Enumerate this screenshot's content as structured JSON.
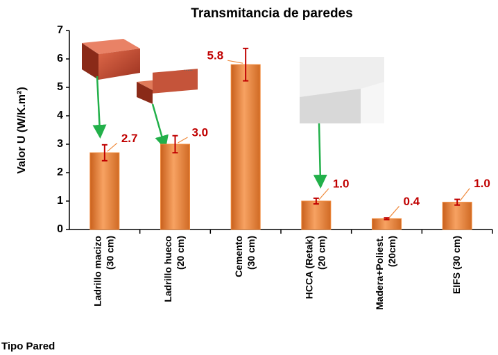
{
  "chart_data": {
    "type": "bar",
    "title": "Transmitancia de paredes",
    "y_label": "Valor U (W/K.m²)",
    "x_label": "Tipo Pared",
    "categories": [
      [
        "Ladrillo macizo",
        "(30 cm)"
      ],
      [
        "Ladrillo hueco",
        "(20 cm)"
      ],
      [
        "Cemento",
        "(30 cm)"
      ],
      [
        "HCCA (Retak)",
        "(20 cm)"
      ],
      [
        "Madera+Poliest.",
        "(20cm)"
      ],
      [
        "EIFS (30 cm)"
      ]
    ],
    "values": [
      2.7,
      3.0,
      5.8,
      1.0,
      0.38,
      0.96
    ],
    "value_labels": [
      "2.7",
      "3.0",
      "5.8",
      "1.0",
      "0.4",
      "1.0"
    ],
    "errors": [
      0.28,
      0.3,
      0.57,
      0.1,
      0.03,
      0.1
    ],
    "color": "#f08a3c",
    "error_color": "#c00000",
    "label_color": "#c00000",
    "ylim": [
      0,
      7
    ],
    "yticks": [
      0,
      1,
      2,
      3,
      4,
      5,
      6,
      7
    ]
  }
}
